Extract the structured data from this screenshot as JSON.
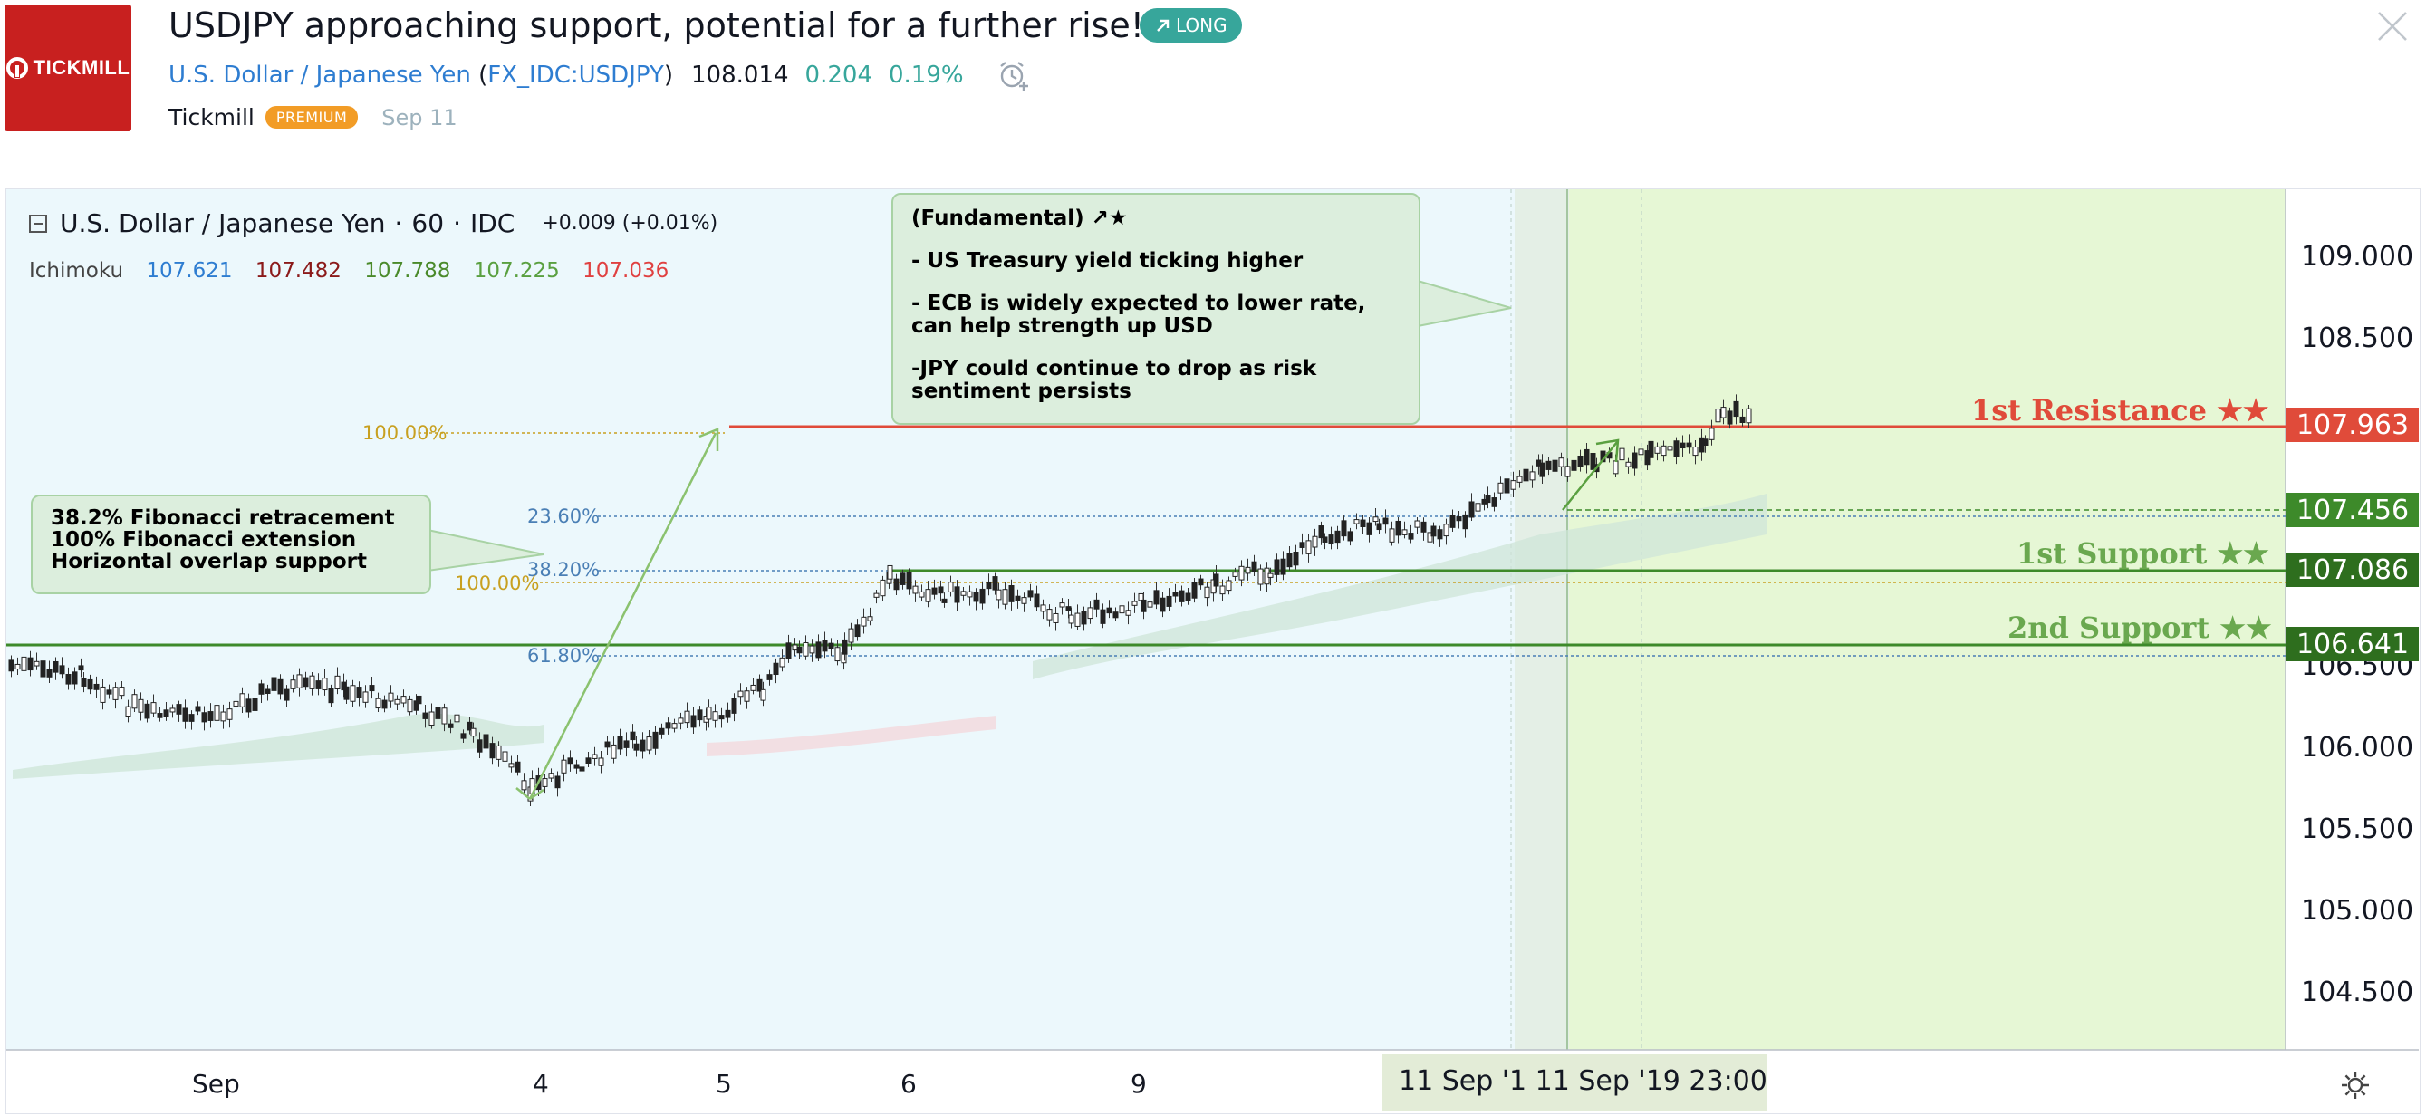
{
  "header": {
    "logo_text": "TICKMILL",
    "idea_title": "USDJPY approaching support, potential for a further rise!",
    "badge": "LONG",
    "symbol_name": "U.S. Dollar / Japanese Yen",
    "symbol_ticker": "FX_IDC:USDJPY",
    "price": "108.014",
    "change": "0.204",
    "change_pct": "0.19%",
    "author": "Tickmill",
    "author_badge": "PREMIUM",
    "date": "Sep 11"
  },
  "chart": {
    "legend": {
      "symbol": "U.S. Dollar / Japanese Yen",
      "interval": "60",
      "exchange": "IDC",
      "change": "+0.009 (+0.01%)"
    },
    "indicator": {
      "name": "Ichimoku",
      "values": [
        "107.621",
        "107.482",
        "107.788",
        "107.225",
        "107.036"
      ],
      "colors": [
        "#2e7dd1",
        "#8b1a1a",
        "#4a8a2a",
        "#5aa040",
        "#e04040"
      ]
    },
    "fundamental_note": [
      "(Fundamental) ↗★",
      "- US Treasury yield ticking higher",
      "- ECB is widely expected to lower rate, can help strength up USD",
      "-JPY could continue to drop as risk sentiment persists"
    ],
    "fib_note": [
      "38.2% Fibonacci retracement",
      "100% Fibonacci extension",
      "Horizontal overlap support"
    ],
    "fib_labels": {
      "ext_100": "100.00%",
      "ret_236": "23.60%",
      "ret_382": "38.20%",
      "ret_100": "100.00%",
      "ret_618": "61.80%"
    },
    "levels": {
      "resistance_label": "1st Resistance ★★",
      "support1_label": "1st Support ★★",
      "support2_label": "2nd Support ★★",
      "resistance_price": "107.963",
      "tag_mid_price": "107.456",
      "support1_price": "107.086",
      "support2_price": "106.641"
    },
    "price_axis": [
      "109.000",
      "108.500",
      "106.500",
      "106.000",
      "105.500",
      "105.000",
      "104.500"
    ],
    "time_axis": [
      "Sep",
      "4",
      "5",
      "6",
      "9"
    ],
    "time_range": "11 Sep '1   11 Sep '19   23:00",
    "colors": {
      "resistance": "#e04b3a",
      "support": "#3d8a2a",
      "support_label": "#6aa84f",
      "chart_bg": "#ecf8fc",
      "projection_bg": "#e6f7d5",
      "fib_blue": "#4a7fb5",
      "fib_gold": "#c8a020"
    }
  }
}
